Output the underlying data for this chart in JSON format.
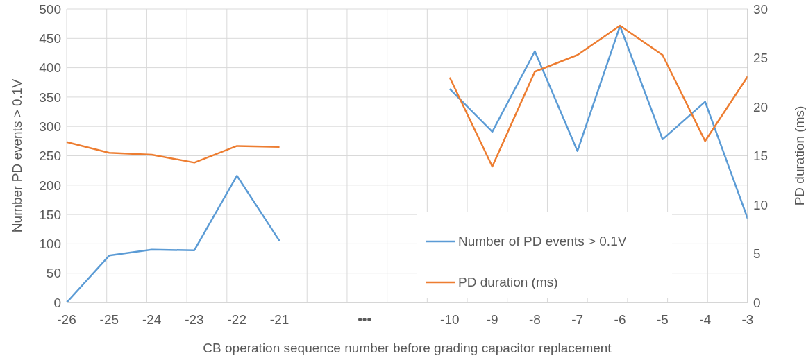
{
  "chart_data": {
    "type": "line",
    "xlabel": "CB operation sequence number before grading capacitor replacement",
    "ylabel": "Number PD events > 0.1V",
    "y2label": "PD duration (ms)",
    "categories": [
      "-26",
      "-25",
      "-24",
      "-23",
      "-22",
      "-21",
      null,
      "•••",
      null,
      "-10",
      "-9",
      "-8",
      "-7",
      "-6",
      "-5",
      "-4",
      "-3"
    ],
    "series": [
      {
        "name": "Number of PD events > 0.1V",
        "color": "#5b9bd5",
        "values": [
          0,
          80,
          90,
          89,
          216,
          105,
          null,
          null,
          null,
          364,
          291,
          428,
          258,
          471,
          278,
          342,
          143
        ]
      },
      {
        "name": "PD duration (ms)",
        "color": "#ed7d31",
        "axis": "y2",
        "values": [
          16.4,
          15.3,
          15.1,
          14.3,
          16.0,
          15.9,
          null,
          null,
          null,
          23.0,
          13.9,
          23.6,
          25.3,
          28.3,
          25.3,
          16.5,
          23.1
        ]
      }
    ],
    "ylim": [
      0,
      500
    ],
    "yticks": [
      0,
      50,
      100,
      150,
      200,
      250,
      300,
      350,
      400,
      450,
      500
    ],
    "y2lim": [
      0,
      30
    ],
    "y2ticks": [
      0,
      5,
      10,
      15,
      20,
      25,
      30
    ],
    "grid": true,
    "legend": "bottom right",
    "marker": "none",
    "line_style": "solid"
  }
}
